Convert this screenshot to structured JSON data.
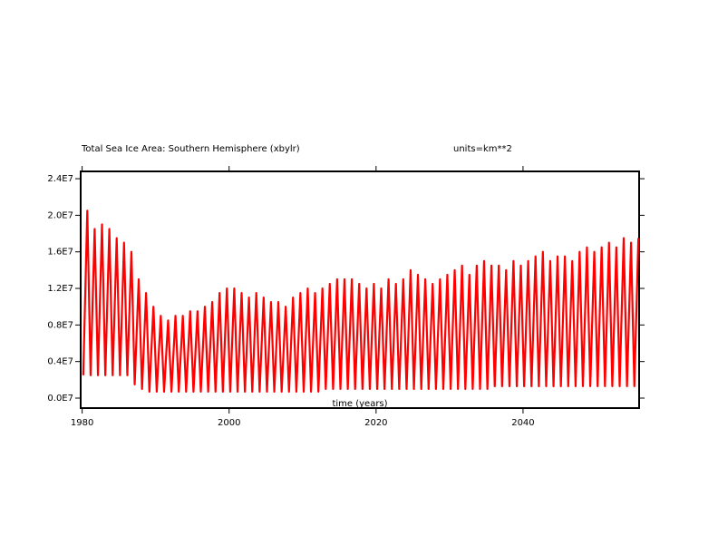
{
  "chart_data": {
    "type": "line",
    "title": "Total Sea Ice Area: Southern Hemisphere (xbylr)",
    "subtitle": "units=km**2",
    "xlabel": "time (years)",
    "xlim": [
      1979.8,
      2055.8
    ],
    "xticks": [
      1980,
      2000,
      2020,
      2040
    ],
    "ylim": [
      -1090000.0,
      24800000.0
    ],
    "yticks": [
      {
        "value": 0,
        "label": "0.0E7"
      },
      {
        "value": 4000000.0,
        "label": "0.4E7"
      },
      {
        "value": 8000000.0,
        "label": "0.8E7"
      },
      {
        "value": 12000000.0,
        "label": "1.2E7"
      },
      {
        "value": 16000000.0,
        "label": "1.6E7"
      },
      {
        "value": 20000000.0,
        "label": "2.0E7"
      },
      {
        "value": 24000000.0,
        "label": "2.4E7"
      }
    ],
    "x": [
      1980.15,
      1980.7,
      1981.15,
      1981.7,
      1982.15,
      1982.7,
      1983.15,
      1983.7,
      1984.15,
      1984.7,
      1985.15,
      1985.7,
      1986.15,
      1986.7,
      1987.15,
      1987.7,
      1988.15,
      1988.7,
      1989.15,
      1989.7,
      1990.15,
      1990.7,
      1991.15,
      1991.7,
      1992.15,
      1992.7,
      1993.15,
      1993.7,
      1994.15,
      1994.7,
      1995.15,
      1995.7,
      1996.15,
      1996.7,
      1997.15,
      1997.7,
      1998.15,
      1998.7,
      1999.15,
      1999.7,
      2000.15,
      2000.7,
      2001.15,
      2001.7,
      2002.15,
      2002.7,
      2003.15,
      2003.7,
      2004.15,
      2004.7,
      2005.15,
      2005.7,
      2006.15,
      2006.7,
      2007.15,
      2007.7,
      2008.15,
      2008.7,
      2009.15,
      2009.7,
      2010.15,
      2010.7,
      2011.15,
      2011.7,
      2012.15,
      2012.7,
      2013.15,
      2013.7,
      2014.15,
      2014.7,
      2015.15,
      2015.7,
      2016.15,
      2016.7,
      2017.15,
      2017.7,
      2018.15,
      2018.7,
      2019.15,
      2019.7,
      2020.15,
      2020.7,
      2021.15,
      2021.7,
      2022.15,
      2022.7,
      2023.15,
      2023.7,
      2024.15,
      2024.7,
      2025.15,
      2025.7,
      2026.15,
      2026.7,
      2027.15,
      2027.7,
      2028.15,
      2028.7,
      2029.15,
      2029.7,
      2030.15,
      2030.7,
      2031.15,
      2031.7,
      2032.15,
      2032.7,
      2033.15,
      2033.7,
      2034.15,
      2034.7,
      2035.15,
      2035.7,
      2036.15,
      2036.7,
      2037.15,
      2037.7,
      2038.15,
      2038.7,
      2039.15,
      2039.7,
      2040.15,
      2040.7,
      2041.15,
      2041.7,
      2042.15,
      2042.7,
      2043.15,
      2043.7,
      2044.15,
      2044.7,
      2045.15,
      2045.7,
      2046.15,
      2046.7,
      2047.15,
      2047.7,
      2048.15,
      2048.7,
      2049.15,
      2049.7,
      2050.15,
      2050.7,
      2051.15,
      2051.7,
      2052.15,
      2052.7,
      2053.15,
      2053.7,
      2054.15,
      2054.7,
      2055.15,
      2055.7
    ],
    "series": [
      {
        "color": "#ff0000",
        "values": [
          2500000.0,
          20500000.0,
          2500000.0,
          18500000.0,
          2500000.0,
          19000000.0,
          2500000.0,
          18500000.0,
          2500000.0,
          17500000.0,
          2500000.0,
          17000000.0,
          2500000.0,
          16000000.0,
          1500000.0,
          13000000.0,
          1000000.0,
          11500000.0,
          700000.0,
          10000000.0,
          700000.0,
          9000000.0,
          700000.0,
          8500000.0,
          700000.0,
          9000000.0,
          700000.0,
          9000000.0,
          700000.0,
          9500000.0,
          700000.0,
          9500000.0,
          700000.0,
          10000000.0,
          700000.0,
          10500000.0,
          700000.0,
          11500000.0,
          700000.0,
          12000000.0,
          700000.0,
          12000000.0,
          700000.0,
          11500000.0,
          700000.0,
          11000000.0,
          700000.0,
          11500000.0,
          700000.0,
          11000000.0,
          700000.0,
          10500000.0,
          700000.0,
          10500000.0,
          700000.0,
          10000000.0,
          700000.0,
          11000000.0,
          700000.0,
          11500000.0,
          700000.0,
          12000000.0,
          700000.0,
          11500000.0,
          700000.0,
          12000000.0,
          1000000.0,
          12500000.0,
          1000000.0,
          13000000.0,
          1000000.0,
          13000000.0,
          1000000.0,
          13000000.0,
          1000000.0,
          12500000.0,
          1000000.0,
          12000000.0,
          1000000.0,
          12500000.0,
          1000000.0,
          12000000.0,
          1000000.0,
          13000000.0,
          1000000.0,
          12500000.0,
          1000000.0,
          13000000.0,
          1000000.0,
          14000000.0,
          1000000.0,
          13500000.0,
          1000000.0,
          13000000.0,
          1000000.0,
          12500000.0,
          1000000.0,
          13000000.0,
          1000000.0,
          13500000.0,
          1000000.0,
          14000000.0,
          1000000.0,
          14500000.0,
          1000000.0,
          13500000.0,
          1000000.0,
          14500000.0,
          1000000.0,
          15000000.0,
          1000000.0,
          14500000.0,
          1300000.0,
          14500000.0,
          1300000.0,
          14000000.0,
          1300000.0,
          15000000.0,
          1300000.0,
          14500000.0,
          1300000.0,
          15000000.0,
          1300000.0,
          15500000.0,
          1300000.0,
          16000000.0,
          1300000.0,
          15000000.0,
          1300000.0,
          15500000.0,
          1300000.0,
          15500000.0,
          1300000.0,
          15000000.0,
          1300000.0,
          16000000.0,
          1300000.0,
          16500000.0,
          1300000.0,
          16000000.0,
          1300000.0,
          16500000.0,
          1300000.0,
          17000000.0,
          1300000.0,
          16500000.0,
          1300000.0,
          17500000.0,
          1300000.0,
          17000000.0,
          1300000.0,
          17500000.0
        ]
      }
    ]
  }
}
